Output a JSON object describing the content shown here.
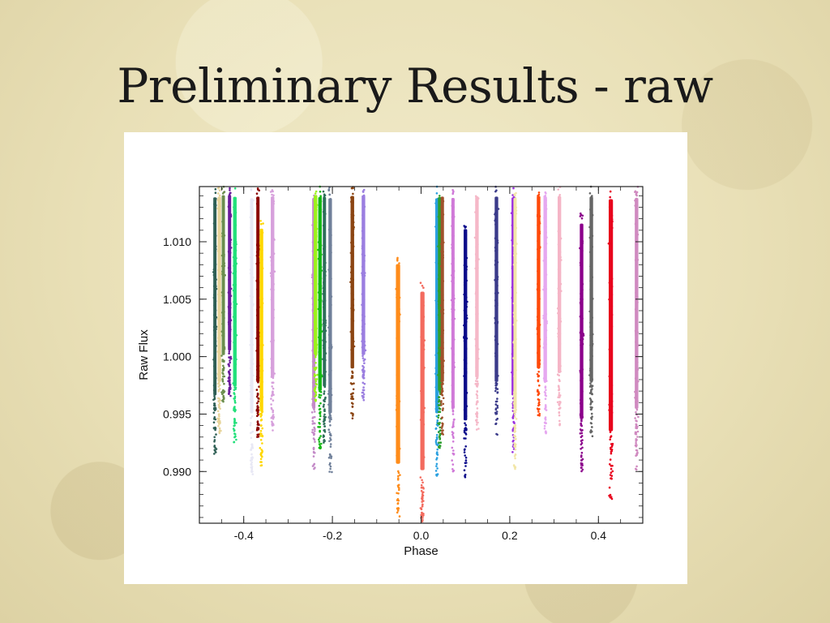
{
  "slide": {
    "title": "Preliminary Results - raw"
  },
  "chart_data": {
    "type": "scatter",
    "title": "",
    "xlabel": "Phase",
    "ylabel": "Raw Flux",
    "xlim": [
      -0.5,
      0.5
    ],
    "ylim": [
      0.9855,
      1.0148
    ],
    "grid": false,
    "legend": "none",
    "x_ticks": [
      -0.4,
      -0.2,
      0.0,
      0.2,
      0.4
    ],
    "x_tick_labels": [
      "-0.4",
      "-0.2",
      "0.0",
      "0.2",
      "0.4"
    ],
    "y_ticks": [
      0.99,
      0.995,
      1.0,
      1.005,
      1.01
    ],
    "y_tick_labels": [
      "0.990",
      "0.995",
      "1.000",
      "1.005",
      "1.010"
    ],
    "bands": [
      {
        "x": -0.465,
        "width": 0.008,
        "ymin": 0.9915,
        "ymax": 1.0148,
        "color": "#2f5f55"
      },
      {
        "x": -0.455,
        "width": 0.01,
        "ymin": 0.993,
        "ymax": 1.0148,
        "color": "#e7d49a"
      },
      {
        "x": -0.446,
        "width": 0.006,
        "ymin": 0.996,
        "ymax": 1.0148,
        "color": "#6b8e4e"
      },
      {
        "x": -0.432,
        "width": 0.009,
        "ymin": 0.9965,
        "ymax": 1.0148,
        "color": "#6a1b9a"
      },
      {
        "x": -0.42,
        "width": 0.01,
        "ymin": 0.9925,
        "ymax": 1.0148,
        "color": "#22e07a"
      },
      {
        "x": -0.382,
        "width": 0.006,
        "ymin": 0.9895,
        "ymax": 1.0148,
        "color": "#e8e8f5"
      },
      {
        "x": -0.368,
        "width": 0.007,
        "ymin": 0.993,
        "ymax": 1.0148,
        "color": "#8b0000"
      },
      {
        "x": -0.36,
        "width": 0.01,
        "ymin": 0.9905,
        "ymax": 1.012,
        "color": "#ffd700"
      },
      {
        "x": -0.335,
        "width": 0.01,
        "ymin": 0.9935,
        "ymax": 1.0148,
        "color": "#d7a0dc"
      },
      {
        "x": -0.242,
        "width": 0.007,
        "ymin": 0.99,
        "ymax": 1.0148,
        "color": "#c48bc8"
      },
      {
        "x": -0.238,
        "width": 0.01,
        "ymin": 0.996,
        "ymax": 1.0148,
        "color": "#9cf21a"
      },
      {
        "x": -0.228,
        "width": 0.01,
        "ymin": 0.992,
        "ymax": 1.0148,
        "color": "#15b815"
      },
      {
        "x": -0.218,
        "width": 0.007,
        "ymin": 0.9925,
        "ymax": 1.0148,
        "color": "#2f6f5a"
      },
      {
        "x": -0.205,
        "width": 0.01,
        "ymin": 0.9895,
        "ymax": 1.0148,
        "color": "#70809a"
      },
      {
        "x": -0.155,
        "width": 0.01,
        "ymin": 0.9945,
        "ymax": 1.0148,
        "color": "#8b4513"
      },
      {
        "x": -0.13,
        "width": 0.01,
        "ymin": 0.996,
        "ymax": 1.0148,
        "color": "#9b7ee0"
      },
      {
        "x": -0.052,
        "width": 0.012,
        "ymin": 0.9855,
        "ymax": 1.009,
        "color": "#ff8c1a"
      },
      {
        "x": 0.003,
        "width": 0.012,
        "ymin": 0.9855,
        "ymax": 1.0065,
        "color": "#f36b5e"
      },
      {
        "x": 0.036,
        "width": 0.01,
        "ymin": 0.9895,
        "ymax": 1.0148,
        "color": "#2aa0e0"
      },
      {
        "x": 0.042,
        "width": 0.01,
        "ymin": 0.992,
        "ymax": 1.0148,
        "color": "#2f9f2f"
      },
      {
        "x": 0.048,
        "width": 0.008,
        "ymin": 0.993,
        "ymax": 1.0148,
        "color": "#a0522d"
      },
      {
        "x": 0.072,
        "width": 0.008,
        "ymin": 0.99,
        "ymax": 1.0148,
        "color": "#d07ad8"
      },
      {
        "x": 0.1,
        "width": 0.01,
        "ymin": 0.9895,
        "ymax": 1.012,
        "color": "#0a0a8a"
      },
      {
        "x": 0.126,
        "width": 0.01,
        "ymin": 0.9935,
        "ymax": 1.0148,
        "color": "#f5b8c8"
      },
      {
        "x": 0.17,
        "width": 0.01,
        "ymin": 0.993,
        "ymax": 1.0148,
        "color": "#3b3b8a"
      },
      {
        "x": 0.208,
        "width": 0.01,
        "ymin": 0.9915,
        "ymax": 1.0148,
        "color": "#9b30e0"
      },
      {
        "x": 0.212,
        "width": 0.006,
        "ymin": 0.99,
        "ymax": 1.0148,
        "color": "#f2e6a8"
      },
      {
        "x": 0.265,
        "width": 0.01,
        "ymin": 0.9945,
        "ymax": 1.0148,
        "color": "#ff4a0a"
      },
      {
        "x": 0.28,
        "width": 0.01,
        "ymin": 0.993,
        "ymax": 1.0148,
        "color": "#e6a8f0"
      },
      {
        "x": 0.312,
        "width": 0.01,
        "ymin": 0.994,
        "ymax": 1.0148,
        "color": "#f5b5c6"
      },
      {
        "x": 0.362,
        "width": 0.01,
        "ymin": 0.9895,
        "ymax": 1.0125,
        "color": "#8b008b"
      },
      {
        "x": 0.384,
        "width": 0.01,
        "ymin": 0.993,
        "ymax": 1.0148,
        "color": "#666666"
      },
      {
        "x": 0.428,
        "width": 0.012,
        "ymin": 0.9875,
        "ymax": 1.0148,
        "color": "#e8001c"
      },
      {
        "x": 0.486,
        "width": 0.01,
        "ymin": 0.99,
        "ymax": 1.0148,
        "color": "#d08ac0"
      }
    ]
  }
}
